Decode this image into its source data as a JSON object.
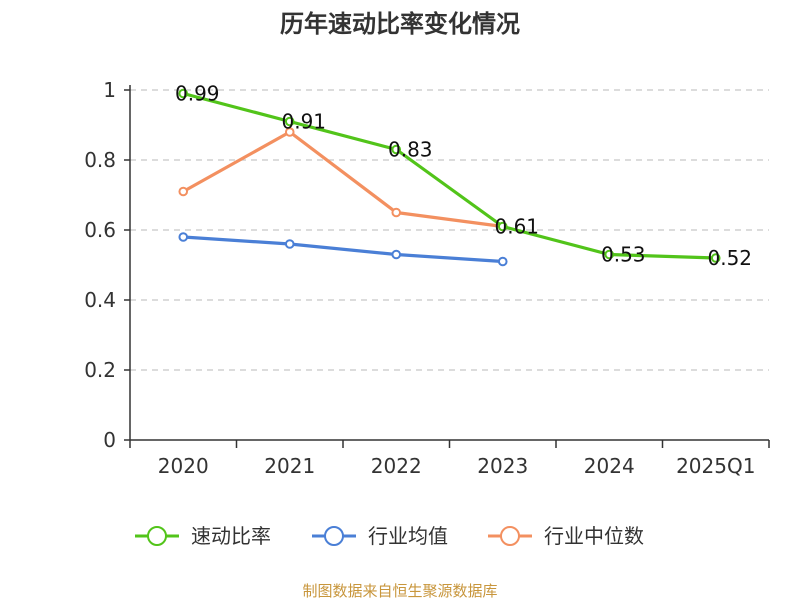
{
  "chart_data": {
    "type": "line",
    "title": "历年速动比率变化情况",
    "xlabel": "",
    "ylabel": "",
    "categories": [
      "2020",
      "2021",
      "2022",
      "2023",
      "2024",
      "2025Q1"
    ],
    "ylim": [
      0,
      1
    ],
    "yticks": [
      "0",
      "0.2",
      "0.4",
      "0.6",
      "0.8",
      "1"
    ],
    "grid": true,
    "legend_position": "bottom",
    "series": [
      {
        "name": "速动比率",
        "color": "#52c41a",
        "values": [
          0.99,
          0.91,
          0.83,
          0.61,
          0.53,
          0.52
        ],
        "labels": true
      },
      {
        "name": "行业均值",
        "color": "#4a7fd6",
        "values": [
          0.58,
          0.56,
          0.53,
          0.51,
          null,
          null
        ],
        "labels": false
      },
      {
        "name": "行业中位数",
        "color": "#f39060",
        "values": [
          0.71,
          0.88,
          0.65,
          0.61,
          null,
          null
        ],
        "labels": false
      }
    ]
  },
  "footer": {
    "source": "制图数据来自恒生聚源数据库"
  }
}
